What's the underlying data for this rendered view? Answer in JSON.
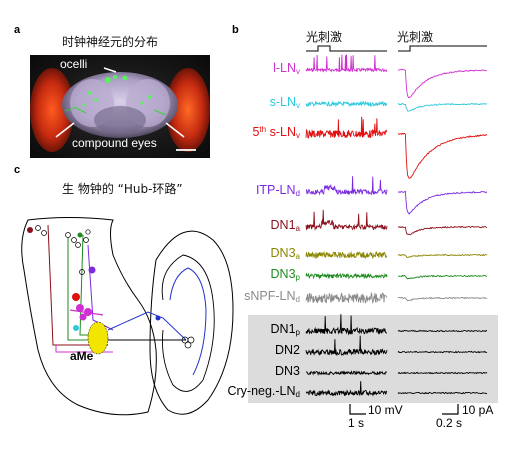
{
  "panel_a": {
    "letter": "a",
    "title": "时钟神经元的分布",
    "label_ocelli": "ocelli",
    "label_compound_eyes": "compound eyes"
  },
  "panel_b": {
    "letter": "b",
    "stim_label_left": "光刺激",
    "stim_label_right": "光刺激",
    "traces": [
      {
        "id": "l-lnv",
        "name": "l-LN",
        "sub": "v",
        "sup": "",
        "prefix": "",
        "color": "#d12fd1",
        "group": "top"
      },
      {
        "id": "s-lnv",
        "name": "s-LN",
        "sub": "v",
        "sup": "",
        "prefix": "",
        "color": "#2ec8dc",
        "group": "top"
      },
      {
        "id": "5th-s-lnv",
        "name": " s-LN",
        "sub": "v",
        "sup": "th",
        "prefix": "5",
        "color": "#e01010",
        "group": "top"
      },
      {
        "id": "itp-lnd",
        "name": "ITP-LN",
        "sub": "d",
        "sup": "",
        "prefix": "",
        "color": "#7a2be0",
        "group": "top"
      },
      {
        "id": "dn1a",
        "name": "DN1",
        "sub": "a",
        "sup": "",
        "prefix": "",
        "color": "#8b0f1a",
        "group": "top"
      },
      {
        "id": "dn3a",
        "name": "DN3",
        "sub": "a",
        "sup": "",
        "prefix": "",
        "color": "#8a8500",
        "group": "top"
      },
      {
        "id": "dn3p",
        "name": "DN3",
        "sub": "p",
        "sup": "",
        "prefix": "",
        "color": "#1e8a1e",
        "group": "top"
      },
      {
        "id": "snpf-lnd",
        "name": "sNPF-LN",
        "sub": "d",
        "sup": "",
        "prefix": "",
        "color": "#8a8a8a",
        "group": "top"
      },
      {
        "id": "dn1p",
        "name": "DN1",
        "sub": "p",
        "sup": "",
        "prefix": "",
        "color": "#000000",
        "group": "gray"
      },
      {
        "id": "dn2",
        "name": "DN2",
        "sub": "",
        "sup": "",
        "prefix": "",
        "color": "#000000",
        "group": "gray"
      },
      {
        "id": "dn3",
        "name": "DN3",
        "sub": "",
        "sup": "",
        "prefix": "",
        "color": "#000000",
        "group": "gray"
      },
      {
        "id": "cry-neg-lnd",
        "name": "Cry-neg.-LN",
        "sub": "d",
        "sup": "",
        "prefix": "",
        "color": "#000000",
        "group": "gray"
      }
    ],
    "scalebar_voltage": "10 mV",
    "scalebar_time_left": "1 s",
    "scalebar_current": "10 pA",
    "scalebar_time_right": "0.2 s"
  },
  "panel_c": {
    "letter": "c",
    "title": "生 物钟的 “Hub-环路”",
    "label_ame": "aMe"
  },
  "colors": {
    "magenta": "#d12fd1",
    "cyan": "#2ec8dc",
    "red": "#e01010",
    "purple": "#7a2be0",
    "darkred": "#8b0f1a",
    "olive": "#8a8500",
    "green": "#1e8a1e",
    "gray": "#8a8a8a",
    "yellow": "#f2e600",
    "blue": "#2233cc"
  }
}
